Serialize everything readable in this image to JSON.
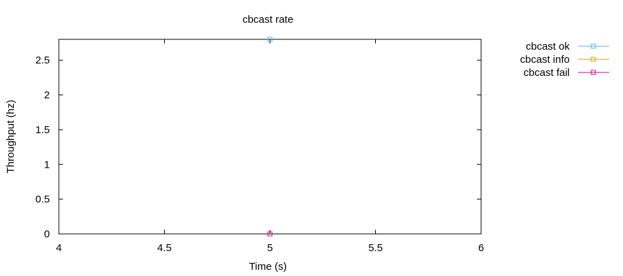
{
  "chart_data": {
    "type": "line",
    "title": "cbcast rate",
    "xlabel": "Time (s)",
    "ylabel": "Throughput (hz)",
    "xlim": [
      4,
      6
    ],
    "ylim": [
      0,
      2.8
    ],
    "x_ticks": [
      4,
      4.5,
      5,
      5.5,
      6
    ],
    "x_tick_labels": [
      "4",
      "4.5",
      "5",
      "5.5",
      "6"
    ],
    "y_ticks": [
      0,
      0.5,
      1,
      1.5,
      2,
      2.5
    ],
    "y_tick_labels": [
      "0",
      "0.5",
      "1",
      "1.5",
      "2",
      "2.5"
    ],
    "grid": false,
    "legend_position": "outside-top-right",
    "series": [
      {
        "name": "cbcast ok",
        "color": "#56b4e9",
        "x": [
          5
        ],
        "y": [
          2.8
        ]
      },
      {
        "name": "cbcast info",
        "color": "#e69f00",
        "x": [
          5
        ],
        "y": [
          0
        ]
      },
      {
        "name": "cbcast fail",
        "color": "#cc0099",
        "x": [
          5
        ],
        "y": [
          0
        ]
      }
    ]
  }
}
